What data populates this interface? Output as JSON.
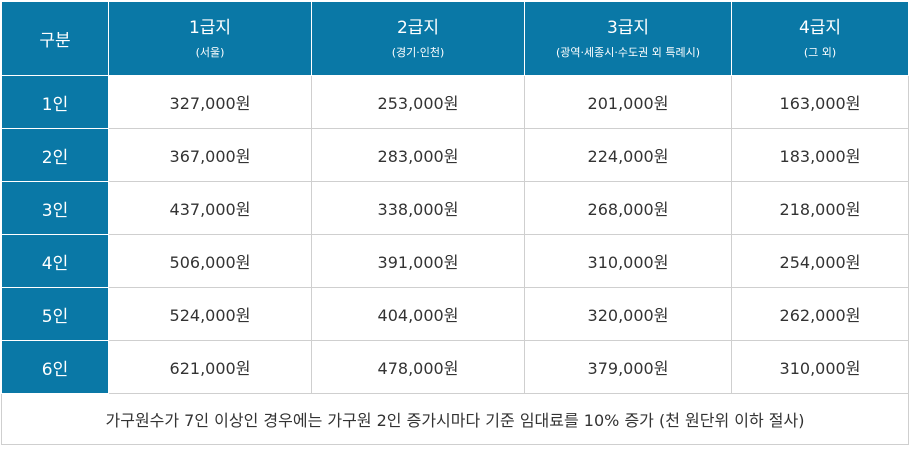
{
  "table": {
    "corner_label": "구분",
    "columns": [
      {
        "label": "1급지",
        "sub": "(서울)"
      },
      {
        "label": "2급지",
        "sub": "(경기·인천)"
      },
      {
        "label": "3급지",
        "sub": "(광역·세종시·수도권 외 특례시)"
      },
      {
        "label": "4급지",
        "sub": "(그 외)"
      }
    ],
    "rows": [
      {
        "label": "1인",
        "values": [
          "327,000원",
          "253,000원",
          "201,000원",
          "163,000원"
        ]
      },
      {
        "label": "2인",
        "values": [
          "367,000원",
          "283,000원",
          "224,000원",
          "183,000원"
        ]
      },
      {
        "label": "3인",
        "values": [
          "437,000원",
          "338,000원",
          "268,000원",
          "218,000원"
        ]
      },
      {
        "label": "4인",
        "values": [
          "506,000원",
          "391,000원",
          "310,000원",
          "254,000원"
        ]
      },
      {
        "label": "5인",
        "values": [
          "524,000원",
          "404,000원",
          "320,000원",
          "262,000원"
        ]
      },
      {
        "label": "6인",
        "values": [
          "621,000원",
          "478,000원",
          "379,000원",
          "310,000원"
        ]
      }
    ],
    "note": "가구원수가 7인 이상인 경우에는 가구원 2인 증가시마다 기준 임대료를 10% 증가 (천 원단위 이하 절사)",
    "colors": {
      "header_bg": "#0a78a6",
      "header_text": "#ffffff",
      "border": "#cfcfcf",
      "body_text": "#333333"
    }
  }
}
